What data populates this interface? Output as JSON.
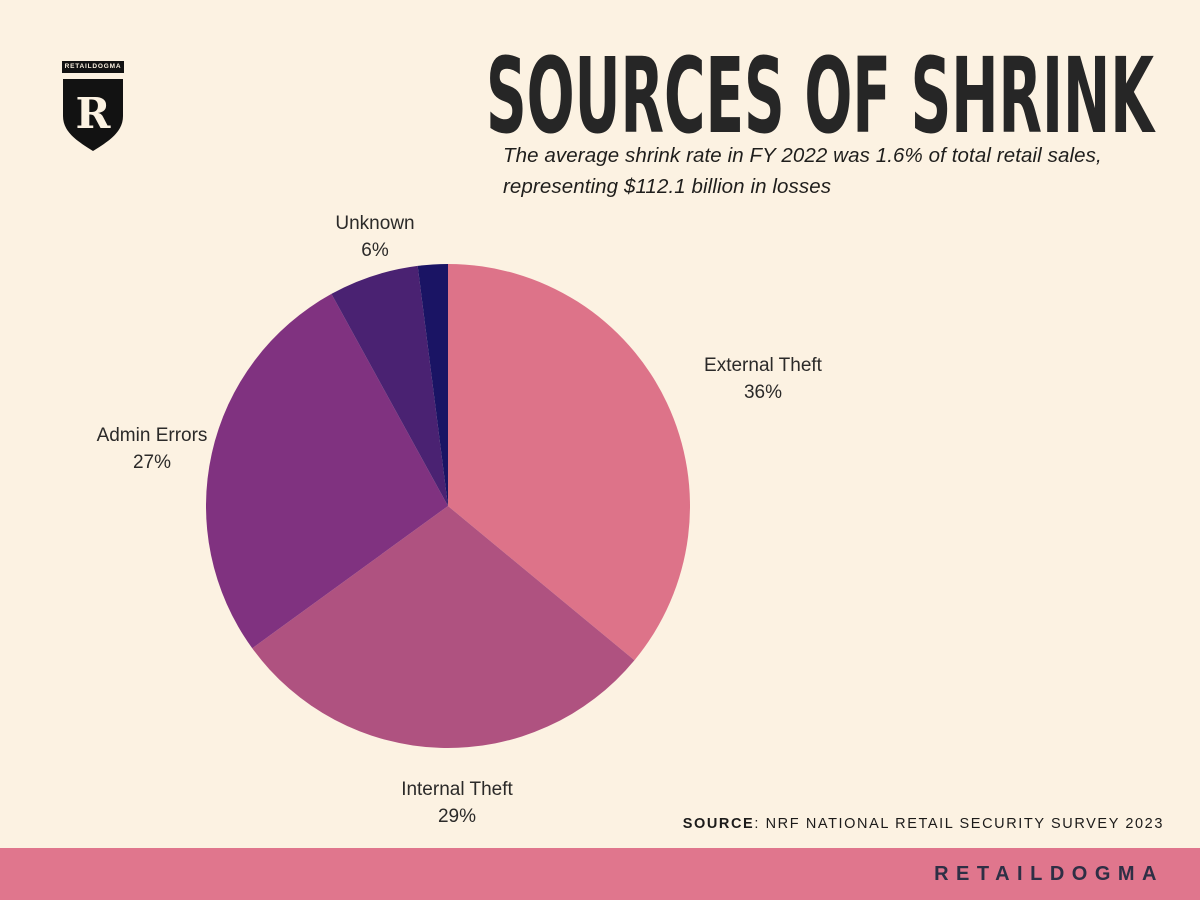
{
  "page": {
    "background": "#fcf2e2"
  },
  "logo": {
    "brand": "RETAILDOGMA",
    "letter": "R"
  },
  "header": {
    "title": "SOURCES OF SHRINK",
    "subtitle_line1": "The average shrink rate in FY 2022 was 1.6% of total retail sales,",
    "subtitle_line2": "representing $112.1 billion in losses"
  },
  "chart_data": {
    "type": "pie",
    "title": "Sources of Shrink",
    "unit": "percent",
    "start_angle_deg": 0,
    "direction": "clockwise-from-top",
    "legend": "none",
    "labels_position": "outside",
    "slices": [
      {
        "label": "External Theft",
        "value": 36,
        "pct_label": "36%",
        "color": "#dd7389"
      },
      {
        "label": "Internal Theft",
        "value": 29,
        "pct_label": "29%",
        "color": "#af5280"
      },
      {
        "label": "Admin Errors",
        "value": 27,
        "pct_label": "27%",
        "color": "#803280"
      },
      {
        "label": "Unknown",
        "value": 6,
        "pct_label": "6%",
        "color": "#4a2272"
      },
      {
        "label": "",
        "value": 2,
        "pct_label": "",
        "color": "#1a1464"
      }
    ]
  },
  "source": {
    "prefix": "SOURCE",
    "rest": ": NRF NATIONAL RETAIL SECURITY SURVEY 2023"
  },
  "footer": {
    "brand": "RETAILDOGMA",
    "bar_color": "#e0768d",
    "text_color": "#2e2f45"
  },
  "colors": {
    "background": "#fcf2e2",
    "title_text": "#262626",
    "label_text": "#2b2a29",
    "accent_pink": "#dd7389",
    "accent_navy": "#1a1464"
  }
}
